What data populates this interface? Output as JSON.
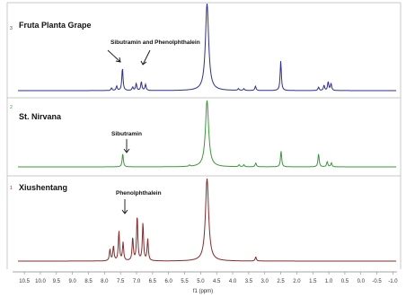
{
  "chart_data": {
    "type": "line",
    "xlabel": "f1 (ppm)",
    "xlim": [
      10.7,
      -1.1
    ],
    "x_reversed": true,
    "x_ticks": [
      "10.5",
      "10.0",
      "9.5",
      "9.0",
      "8.5",
      "8.0",
      "7.5",
      "7.0",
      "6.5",
      "6.0",
      "5.5",
      "5.0",
      "4.5",
      "4.0",
      "3.5",
      "3.0",
      "2.5",
      "2.0",
      "1.5",
      "1.0",
      "0.5",
      "0.0",
      "-0.5",
      "-1.0"
    ],
    "ylabel": "",
    "y_axis": "none (stacked traces, arbitrary intensity)",
    "grid": false,
    "series": [
      {
        "index": "3",
        "name": "Fruta Planta Grape",
        "color": "#2e2e9e",
        "annotation": "Sibutramin and Phenolphthalein",
        "peaks": [
          {
            "x": 7.78,
            "y": 3
          },
          {
            "x": 7.62,
            "y": 5
          },
          {
            "x": 7.44,
            "y": 26
          },
          {
            "x": 7.12,
            "y": 4
          },
          {
            "x": 7.01,
            "y": 8
          },
          {
            "x": 6.85,
            "y": 10
          },
          {
            "x": 6.72,
            "y": 7
          },
          {
            "x": 4.8,
            "y": 100
          },
          {
            "x": 3.82,
            "y": 2
          },
          {
            "x": 3.65,
            "y": 2
          },
          {
            "x": 3.29,
            "y": 5
          },
          {
            "x": 2.5,
            "y": 34
          },
          {
            "x": 1.32,
            "y": 4
          },
          {
            "x": 1.15,
            "y": 6
          },
          {
            "x": 1.02,
            "y": 10
          },
          {
            "x": 0.93,
            "y": 8
          }
        ]
      },
      {
        "index": "2",
        "name": "St. Nirvana",
        "color": "#3a9a3a",
        "annotation": "Sibutramin",
        "peaks": [
          {
            "x": 7.43,
            "y": 20
          },
          {
            "x": 5.35,
            "y": 2
          },
          {
            "x": 4.8,
            "y": 100
          },
          {
            "x": 3.8,
            "y": 3
          },
          {
            "x": 3.65,
            "y": 3
          },
          {
            "x": 3.28,
            "y": 6
          },
          {
            "x": 2.49,
            "y": 24
          },
          {
            "x": 1.32,
            "y": 20
          },
          {
            "x": 1.05,
            "y": 8
          },
          {
            "x": 0.92,
            "y": 6
          }
        ]
      },
      {
        "index": "1",
        "name": "Xiushentang",
        "color": "#8b2a2a",
        "annotation": "Phenolphthalein",
        "peaks": [
          {
            "x": 7.83,
            "y": 14
          },
          {
            "x": 7.72,
            "y": 18
          },
          {
            "x": 7.55,
            "y": 36
          },
          {
            "x": 7.42,
            "y": 22
          },
          {
            "x": 7.12,
            "y": 28
          },
          {
            "x": 6.98,
            "y": 55
          },
          {
            "x": 6.8,
            "y": 46
          },
          {
            "x": 6.65,
            "y": 26
          },
          {
            "x": 4.8,
            "y": 100
          },
          {
            "x": 3.28,
            "y": 5
          }
        ]
      }
    ]
  }
}
